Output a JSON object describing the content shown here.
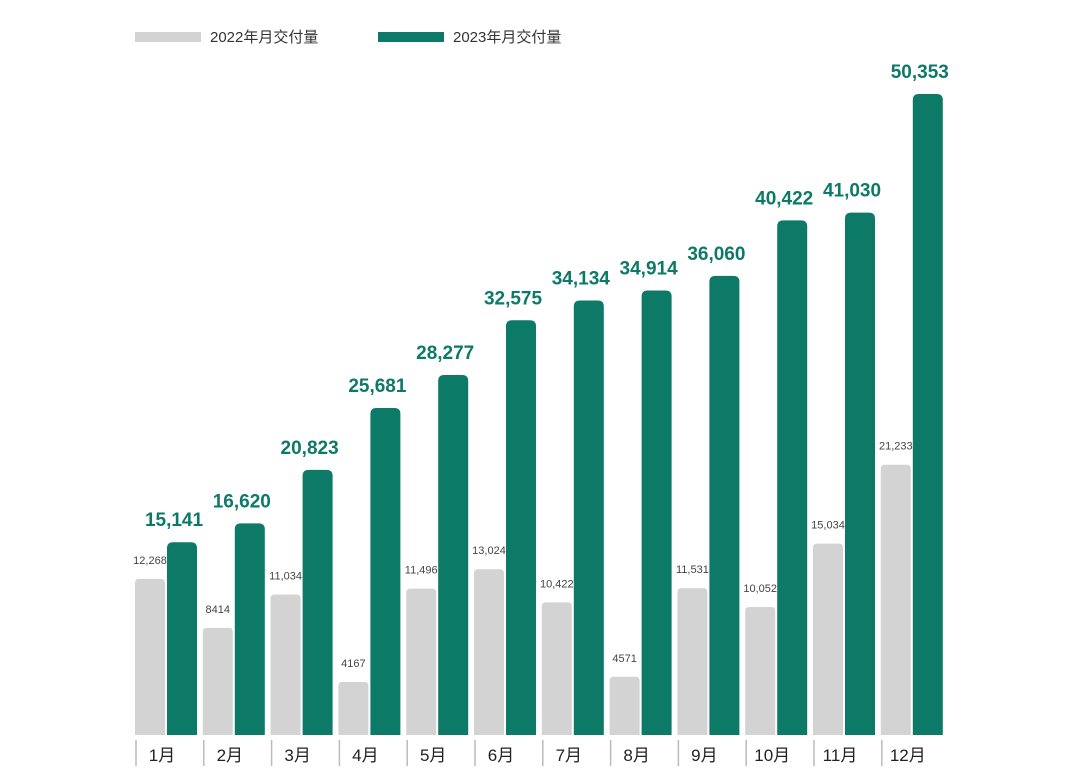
{
  "chart_data": {
    "type": "bar",
    "title": "",
    "xlabel": "",
    "ylabel": "",
    "ylim": [
      0,
      52000
    ],
    "grid": false,
    "legend_position": "top-left",
    "categories": [
      "1月",
      "2月",
      "3月",
      "4月",
      "5月",
      "6月",
      "7月",
      "8月",
      "9月",
      "10月",
      "11月",
      "12月"
    ],
    "series": [
      {
        "name": "2022年月交付量",
        "color": "#d3d3d3",
        "values": [
          12268,
          8414,
          11034,
          4167,
          11496,
          13024,
          10422,
          4571,
          11531,
          10052,
          15034,
          21233
        ],
        "labels": [
          "12,268",
          "8414",
          "11,034",
          "4167",
          "11,496",
          "13,024",
          "10,422",
          "4571",
          "11,531",
          "10,052",
          "15,034",
          "21,233"
        ]
      },
      {
        "name": "2023年月交付量",
        "color": "#0c7a67",
        "values": [
          15141,
          16620,
          20823,
          25681,
          28277,
          32575,
          34134,
          34914,
          36060,
          40422,
          41030,
          50353
        ],
        "labels": [
          "15,141",
          "16,620",
          "20,823",
          "25,681",
          "28,277",
          "32,575",
          "34,134",
          "34,914",
          "36,060",
          "40,422",
          "41,030",
          "50,353"
        ]
      }
    ]
  }
}
